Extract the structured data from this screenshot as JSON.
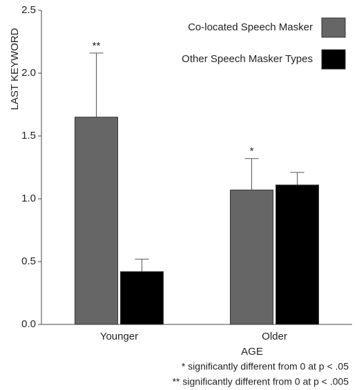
{
  "chart_data": {
    "type": "bar",
    "y_label": "LAST KEYWORD",
    "x_label": "AGE",
    "categories": [
      "Younger",
      "Older"
    ],
    "series": [
      {
        "name": "Co-located Speech Masker",
        "color": "#666666",
        "values": [
          1.65,
          1.07
        ],
        "errors": [
          0.51,
          0.25
        ],
        "markers": [
          "**",
          "*"
        ]
      },
      {
        "name": "Other Speech Masker Types",
        "color": "#000000",
        "values": [
          0.42,
          1.11
        ],
        "errors": [
          0.1,
          0.1
        ],
        "markers": [
          null,
          null
        ]
      }
    ],
    "ylim": [
      0,
      2.5
    ],
    "yticks": [
      {
        "value": 0,
        "label": "0.0"
      },
      {
        "value": 0.5,
        "label": "0.5"
      },
      {
        "value": 1,
        "label": "1.0"
      },
      {
        "value": 1.5,
        "label": "1.5"
      },
      {
        "value": 2,
        "label": "2.0"
      },
      {
        "value": 2.5,
        "label": "2.5"
      }
    ],
    "legend": "top-right",
    "notes": [
      "* significantly different from 0 at p < .05",
      "** significantly different from 0 at p < .005"
    ]
  }
}
